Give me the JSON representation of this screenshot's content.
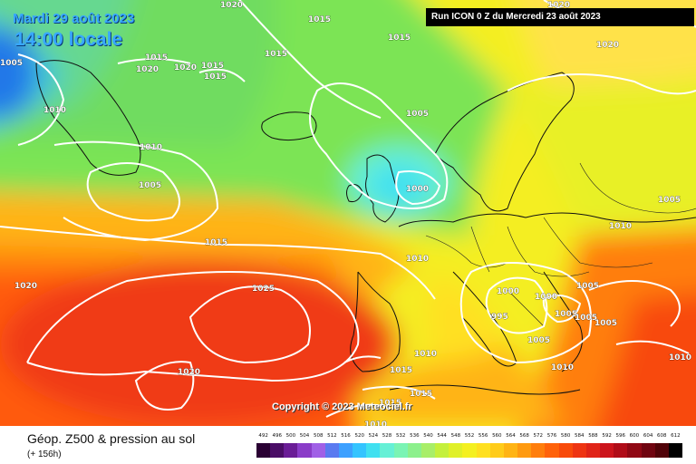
{
  "header": {
    "date": "Mardi 29 août 2023",
    "time": "14:00 locale",
    "run": "Run ICON 0 Z du Mercredi 23 août 2023"
  },
  "copyright": "Copyright © 2023 Meteociel.fr",
  "footer": {
    "title": "Géop. Z500 & pression au sol",
    "subtitle": "(+ 156h)"
  },
  "isobars": [
    "1020",
    "1015",
    "1015",
    "1015",
    "1020",
    "1005",
    "1015",
    "1020",
    "1020",
    "1015",
    "1015",
    "1010",
    "1005",
    "1010",
    "1005",
    "1000",
    "1010",
    "1015",
    "1005",
    "1010",
    "1025",
    "1020",
    "1020",
    "1000",
    "1000",
    "995",
    "1005",
    "1005",
    "1005",
    "1005",
    "1005",
    "1010",
    "1010",
    "1010",
    "1015",
    "1015",
    "1015",
    "1010",
    "1020"
  ],
  "scale": {
    "labels": [
      "492",
      "496",
      "500",
      "504",
      "508",
      "512",
      "516",
      "520",
      "524",
      "528",
      "532",
      "536",
      "540",
      "544",
      "548",
      "552",
      "556",
      "560",
      "564",
      "568",
      "572",
      "576",
      "580",
      "584",
      "588",
      "592",
      "596",
      "600",
      "604",
      "608",
      "612"
    ],
    "colors": [
      "#2a0033",
      "#4a0d66",
      "#6a1c96",
      "#8a3cc8",
      "#a060e6",
      "#5a7af0",
      "#3da0ff",
      "#34c4ff",
      "#40e0f0",
      "#66f0d6",
      "#7af4b4",
      "#8cf08c",
      "#a8ee68",
      "#c4f03c",
      "#e0f028",
      "#f4f020",
      "#ffe020",
      "#ffcc1a",
      "#ffb414",
      "#ff9a10",
      "#ff7e0c",
      "#ff620a",
      "#f84a0a",
      "#ee3412",
      "#e02418",
      "#cc141c",
      "#b00c18",
      "#900814",
      "#700410",
      "#500208",
      "#000000"
    ]
  }
}
